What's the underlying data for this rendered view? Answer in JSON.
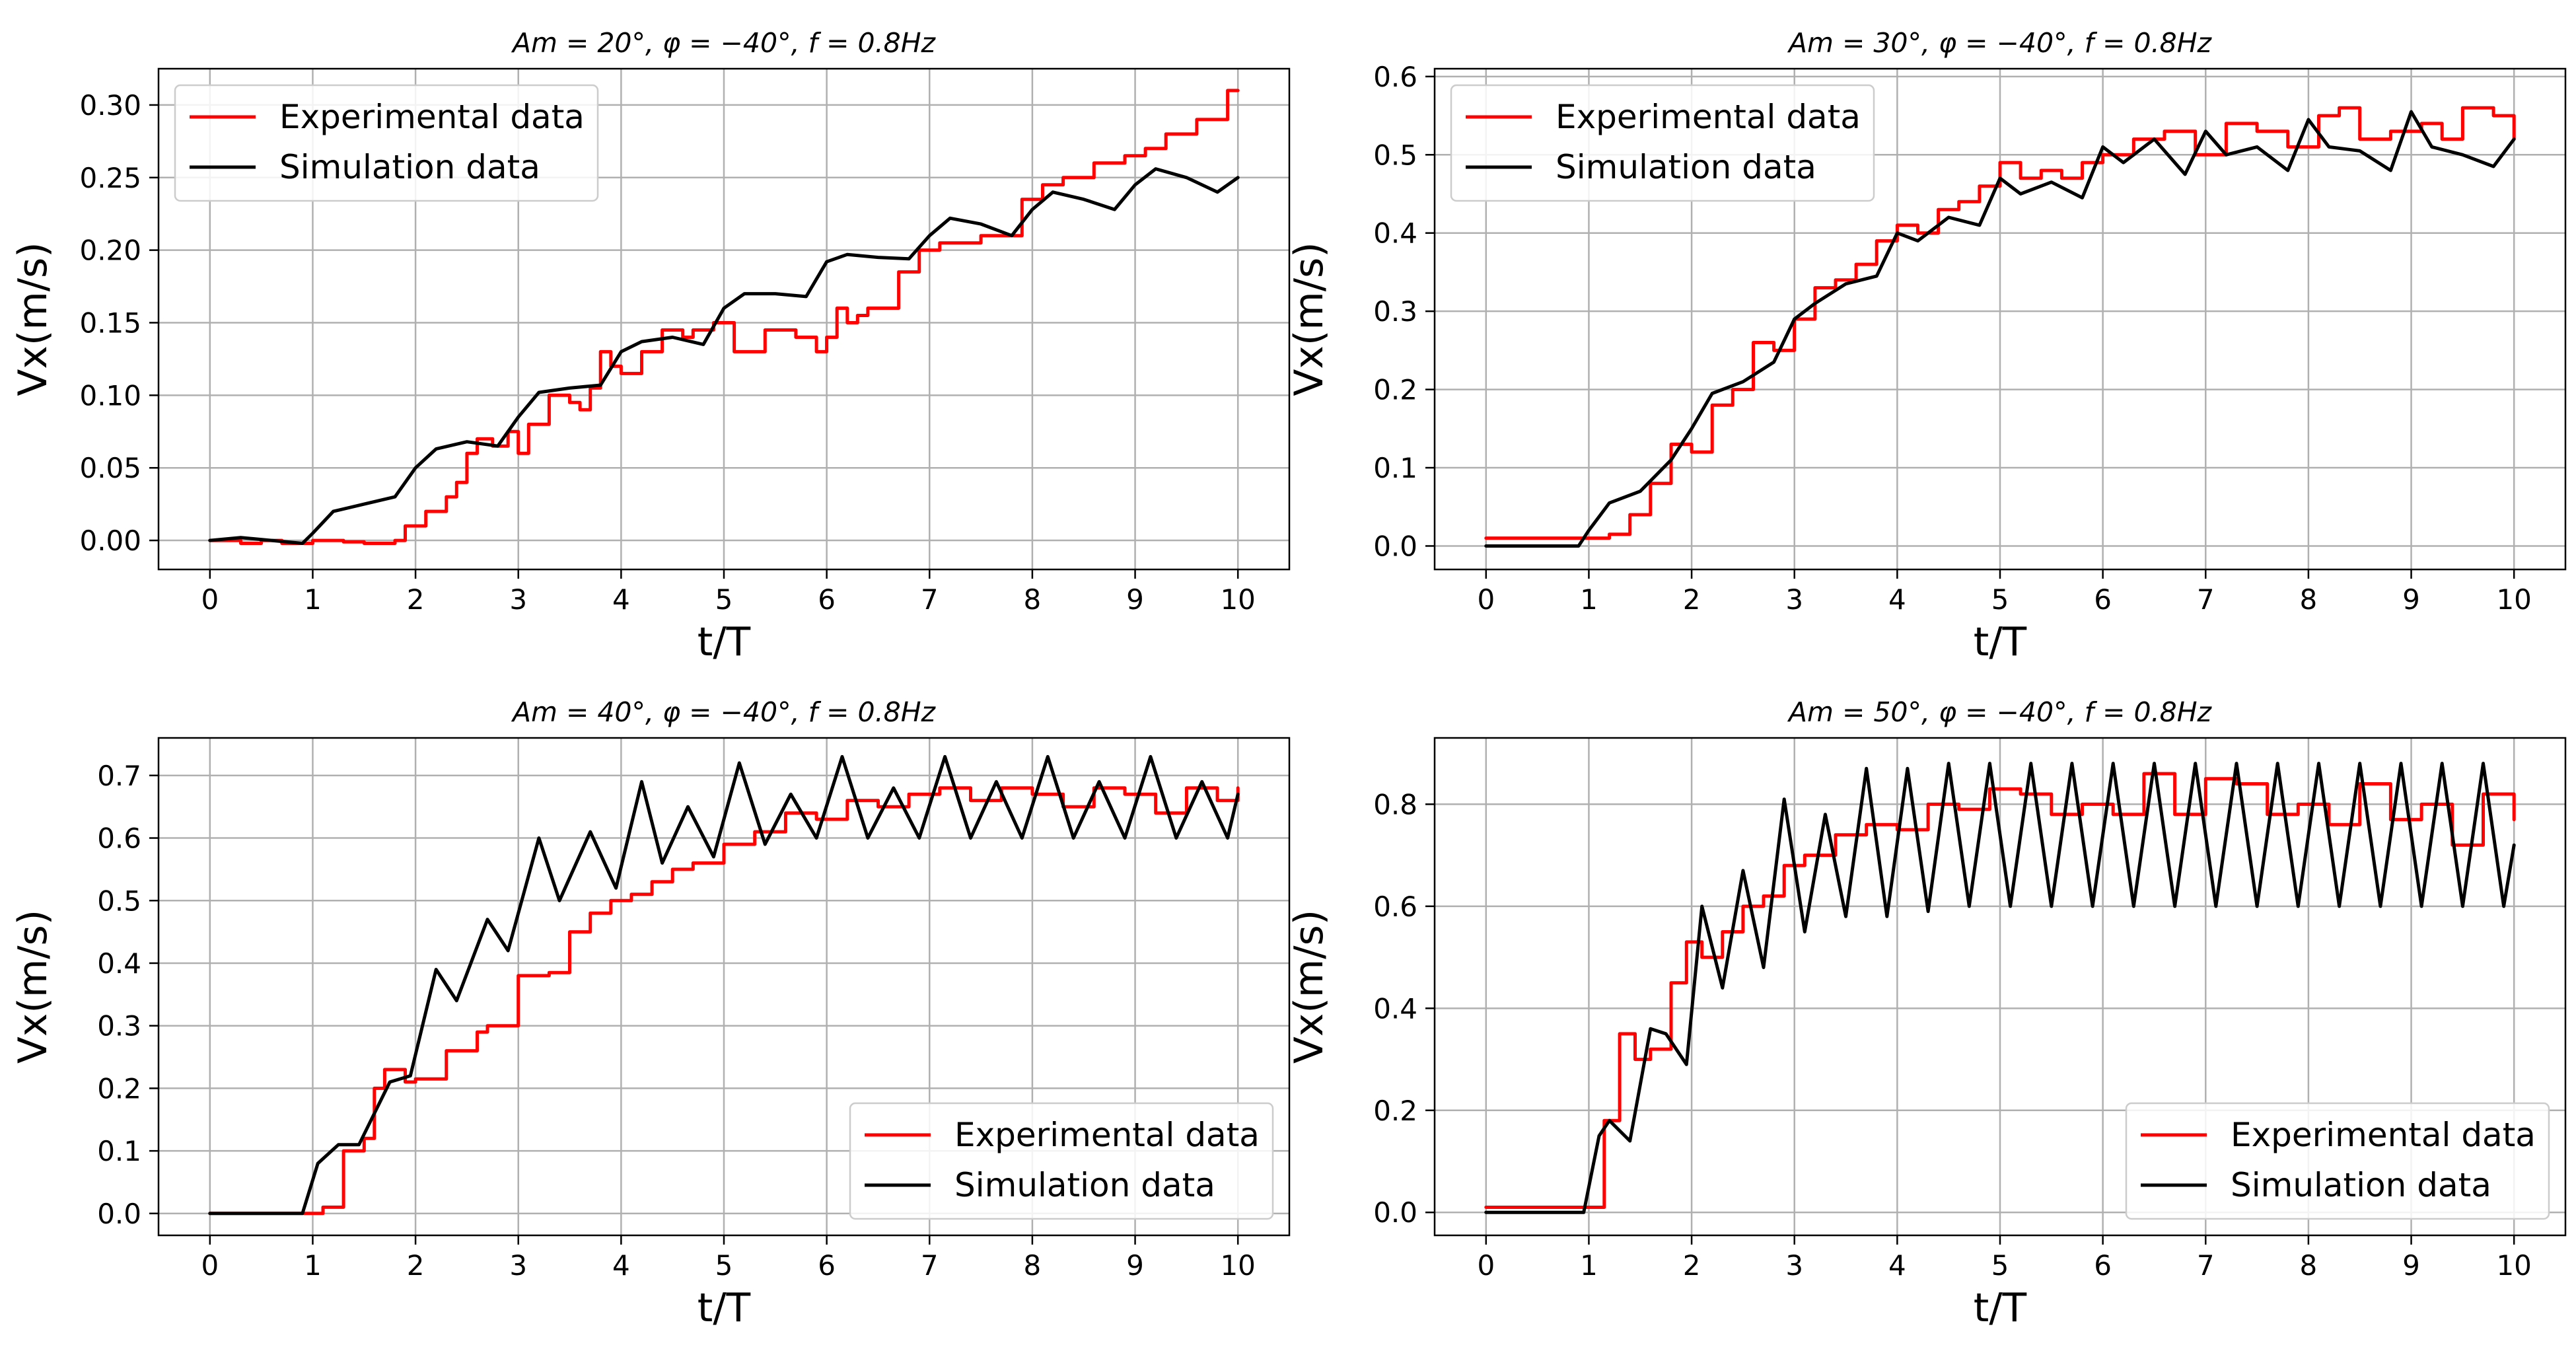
{
  "figure": {
    "description_layout": "2x2 grid of line charts"
  },
  "chart_data": [
    {
      "type": "line",
      "title": "Am = 20°, φ = −40°, f = 0.8Hz",
      "xlabel": "t/T",
      "ylabel": "Vx(m/s)",
      "xlim": [
        -0.5,
        10.5
      ],
      "ylim": [
        -0.02,
        0.325
      ],
      "xticks": [
        0,
        1,
        2,
        3,
        4,
        5,
        6,
        7,
        8,
        9,
        10
      ],
      "yticks": [
        0.0,
        0.05,
        0.1,
        0.15,
        0.2,
        0.25,
        0.3
      ],
      "ytick_labels": [
        "0.00",
        "0.05",
        "0.10",
        "0.15",
        "0.20",
        "0.25",
        "0.30"
      ],
      "grid": true,
      "legend": {
        "placement": "top-left",
        "entries": [
          "Experimental data",
          "Simulation data"
        ]
      },
      "series": [
        {
          "name": "Experimental data",
          "color": "#ff0000",
          "style": "step",
          "x": [
            0,
            0.3,
            0.5,
            0.7,
            1.0,
            1.3,
            1.5,
            1.8,
            1.9,
            2.1,
            2.3,
            2.4,
            2.5,
            2.6,
            2.75,
            2.9,
            3.0,
            3.1,
            3.3,
            3.5,
            3.6,
            3.7,
            3.8,
            3.9,
            4.0,
            4.2,
            4.4,
            4.6,
            4.7,
            4.9,
            5.1,
            5.4,
            5.7,
            5.9,
            6.0,
            6.1,
            6.2,
            6.3,
            6.4,
            6.7,
            6.9,
            7.1,
            7.3,
            7.5,
            7.9,
            8.1,
            8.3,
            8.6,
            8.9,
            9.1,
            9.3,
            9.6,
            9.9,
            10.0
          ],
          "values": [
            0.0,
            -0.002,
            0.0,
            -0.002,
            0.0,
            -0.001,
            -0.002,
            0.0,
            0.01,
            0.02,
            0.03,
            0.04,
            0.06,
            0.07,
            0.065,
            0.075,
            0.06,
            0.08,
            0.1,
            0.095,
            0.09,
            0.105,
            0.13,
            0.12,
            0.115,
            0.13,
            0.145,
            0.14,
            0.145,
            0.15,
            0.13,
            0.145,
            0.14,
            0.13,
            0.14,
            0.16,
            0.15,
            0.155,
            0.16,
            0.185,
            0.2,
            0.205,
            0.205,
            0.21,
            0.235,
            0.245,
            0.25,
            0.26,
            0.265,
            0.27,
            0.28,
            0.29,
            0.31,
            0.31
          ]
        },
        {
          "name": "Simulation data",
          "color": "#000000",
          "style": "line",
          "x": [
            0,
            0.3,
            0.6,
            0.9,
            1.0,
            1.2,
            1.5,
            1.8,
            2.0,
            2.2,
            2.5,
            2.8,
            3.0,
            3.2,
            3.5,
            3.8,
            4.0,
            4.2,
            4.5,
            4.8,
            5.0,
            5.2,
            5.5,
            5.8,
            6.0,
            6.2,
            6.5,
            6.8,
            7.0,
            7.2,
            7.5,
            7.8,
            8.0,
            8.2,
            8.5,
            8.8,
            9.0,
            9.2,
            9.5,
            9.8,
            10.0
          ],
          "values": [
            0.0,
            0.002,
            0.0,
            -0.002,
            0.005,
            0.02,
            0.025,
            0.03,
            0.05,
            0.063,
            0.068,
            0.065,
            0.085,
            0.102,
            0.105,
            0.107,
            0.13,
            0.137,
            0.14,
            0.135,
            0.16,
            0.17,
            0.17,
            0.168,
            0.192,
            0.197,
            0.195,
            0.194,
            0.21,
            0.222,
            0.218,
            0.21,
            0.228,
            0.24,
            0.235,
            0.228,
            0.245,
            0.256,
            0.25,
            0.24,
            0.25
          ]
        }
      ]
    },
    {
      "type": "line",
      "title": "Am = 30°, φ = −40°, f = 0.8Hz",
      "xlabel": "t/T",
      "ylabel": "Vx(m/s)",
      "xlim": [
        -0.5,
        10.5
      ],
      "ylim": [
        -0.03,
        0.61
      ],
      "xticks": [
        0,
        1,
        2,
        3,
        4,
        5,
        6,
        7,
        8,
        9,
        10
      ],
      "yticks": [
        0.0,
        0.1,
        0.2,
        0.3,
        0.4,
        0.5,
        0.6
      ],
      "ytick_labels": [
        "0.0",
        "0.1",
        "0.2",
        "0.3",
        "0.4",
        "0.5",
        "0.6"
      ],
      "grid": true,
      "legend": {
        "placement": "top-left",
        "entries": [
          "Experimental data",
          "Simulation data"
        ]
      },
      "series": [
        {
          "name": "Experimental data",
          "color": "#ff0000",
          "style": "step",
          "x": [
            0,
            0.5,
            1.0,
            1.2,
            1.4,
            1.6,
            1.8,
            2.0,
            2.2,
            2.4,
            2.6,
            2.8,
            3.0,
            3.2,
            3.4,
            3.6,
            3.8,
            4.0,
            4.2,
            4.4,
            4.6,
            4.8,
            5.0,
            5.2,
            5.4,
            5.6,
            5.8,
            6.0,
            6.3,
            6.6,
            6.9,
            7.2,
            7.5,
            7.8,
            8.1,
            8.3,
            8.5,
            8.8,
            9.1,
            9.3,
            9.5,
            9.8,
            10.0
          ],
          "values": [
            0.01,
            0.01,
            0.01,
            0.015,
            0.04,
            0.08,
            0.13,
            0.12,
            0.18,
            0.2,
            0.26,
            0.25,
            0.29,
            0.33,
            0.34,
            0.36,
            0.39,
            0.41,
            0.4,
            0.43,
            0.44,
            0.46,
            0.49,
            0.47,
            0.48,
            0.47,
            0.49,
            0.5,
            0.52,
            0.53,
            0.5,
            0.54,
            0.53,
            0.51,
            0.55,
            0.56,
            0.52,
            0.53,
            0.54,
            0.52,
            0.56,
            0.55,
            0.52
          ]
        },
        {
          "name": "Simulation data",
          "color": "#000000",
          "style": "line",
          "x": [
            0,
            0.5,
            0.9,
            1.0,
            1.2,
            1.5,
            1.8,
            2.0,
            2.2,
            2.5,
            2.8,
            3.0,
            3.2,
            3.5,
            3.8,
            4.0,
            4.2,
            4.5,
            4.8,
            5.0,
            5.2,
            5.5,
            5.8,
            6.0,
            6.2,
            6.5,
            6.8,
            7.0,
            7.2,
            7.5,
            7.8,
            8.0,
            8.2,
            8.5,
            8.8,
            9.0,
            9.2,
            9.5,
            9.8,
            10.0
          ],
          "values": [
            0.0,
            0.0,
            0.0,
            0.02,
            0.055,
            0.07,
            0.11,
            0.15,
            0.195,
            0.21,
            0.235,
            0.29,
            0.31,
            0.335,
            0.345,
            0.4,
            0.39,
            0.42,
            0.41,
            0.47,
            0.45,
            0.465,
            0.445,
            0.51,
            0.49,
            0.52,
            0.475,
            0.53,
            0.5,
            0.51,
            0.48,
            0.545,
            0.51,
            0.505,
            0.48,
            0.555,
            0.51,
            0.5,
            0.485,
            0.52
          ]
        }
      ]
    },
    {
      "type": "line",
      "title": "Am = 40°, φ = −40°, f = 0.8Hz",
      "xlabel": "t/T",
      "ylabel": "Vx(m/s)",
      "xlim": [
        -0.5,
        10.5
      ],
      "ylim": [
        -0.035,
        0.76
      ],
      "xticks": [
        0,
        1,
        2,
        3,
        4,
        5,
        6,
        7,
        8,
        9,
        10
      ],
      "yticks": [
        0.0,
        0.1,
        0.2,
        0.3,
        0.4,
        0.5,
        0.6,
        0.7
      ],
      "ytick_labels": [
        "0.0",
        "0.1",
        "0.2",
        "0.3",
        "0.4",
        "0.5",
        "0.6",
        "0.7"
      ],
      "grid": true,
      "legend": {
        "placement": "bottom-right",
        "entries": [
          "Experimental data",
          "Simulation data"
        ]
      },
      "series": [
        {
          "name": "Experimental data",
          "color": "#ff0000",
          "style": "step",
          "x": [
            0,
            0.5,
            1.0,
            1.1,
            1.3,
            1.5,
            1.6,
            1.7,
            1.9,
            2.0,
            2.3,
            2.6,
            2.7,
            3.0,
            3.3,
            3.5,
            3.7,
            3.9,
            4.1,
            4.3,
            4.5,
            4.7,
            5.0,
            5.3,
            5.6,
            5.9,
            6.2,
            6.5,
            6.8,
            7.1,
            7.4,
            7.7,
            8.0,
            8.3,
            8.6,
            8.9,
            9.2,
            9.5,
            9.8,
            10.0
          ],
          "values": [
            0.0,
            0.0,
            0.0,
            0.01,
            0.1,
            0.12,
            0.2,
            0.23,
            0.21,
            0.215,
            0.26,
            0.29,
            0.3,
            0.38,
            0.385,
            0.45,
            0.48,
            0.5,
            0.51,
            0.53,
            0.55,
            0.56,
            0.59,
            0.61,
            0.64,
            0.63,
            0.66,
            0.65,
            0.67,
            0.68,
            0.66,
            0.68,
            0.67,
            0.65,
            0.68,
            0.67,
            0.64,
            0.68,
            0.66,
            0.68
          ]
        },
        {
          "name": "Simulation data",
          "color": "#000000",
          "style": "line",
          "x": [
            0,
            0.6,
            0.9,
            1.05,
            1.25,
            1.45,
            1.6,
            1.75,
            1.95,
            2.2,
            2.4,
            2.7,
            2.9,
            3.2,
            3.4,
            3.7,
            3.95,
            4.2,
            4.4,
            4.65,
            4.9,
            5.15,
            5.4,
            5.65,
            5.9,
            6.15,
            6.4,
            6.65,
            6.9,
            7.15,
            7.4,
            7.65,
            7.9,
            8.15,
            8.4,
            8.65,
            8.9,
            9.15,
            9.4,
            9.65,
            9.9,
            10.0
          ],
          "values": [
            0.0,
            0.0,
            0.0,
            0.08,
            0.11,
            0.11,
            0.16,
            0.21,
            0.22,
            0.39,
            0.34,
            0.47,
            0.42,
            0.6,
            0.5,
            0.61,
            0.52,
            0.69,
            0.56,
            0.65,
            0.57,
            0.72,
            0.59,
            0.67,
            0.6,
            0.73,
            0.6,
            0.68,
            0.6,
            0.73,
            0.6,
            0.69,
            0.6,
            0.73,
            0.6,
            0.69,
            0.6,
            0.73,
            0.6,
            0.69,
            0.6,
            0.67
          ]
        }
      ]
    },
    {
      "type": "line",
      "title": "Am = 50°, φ = −40°, f = 0.8Hz",
      "xlabel": "t/T",
      "ylabel": "Vx(m/s)",
      "xlim": [
        -0.5,
        10.5
      ],
      "ylim": [
        -0.045,
        0.93
      ],
      "xticks": [
        0,
        1,
        2,
        3,
        4,
        5,
        6,
        7,
        8,
        9,
        10
      ],
      "yticks": [
        0.0,
        0.2,
        0.4,
        0.6,
        0.8
      ],
      "ytick_labels": [
        "0.0",
        "0.2",
        "0.4",
        "0.6",
        "0.8"
      ],
      "grid": true,
      "legend": {
        "placement": "bottom-right",
        "entries": [
          "Experimental data",
          "Simulation data"
        ]
      },
      "series": [
        {
          "name": "Experimental data",
          "color": "#ff0000",
          "style": "step",
          "x": [
            0,
            0.5,
            1.0,
            1.15,
            1.3,
            1.45,
            1.6,
            1.8,
            1.95,
            2.1,
            2.3,
            2.5,
            2.7,
            2.9,
            3.1,
            3.4,
            3.7,
            4.0,
            4.3,
            4.6,
            4.9,
            5.2,
            5.5,
            5.8,
            6.1,
            6.4,
            6.7,
            7.0,
            7.3,
            7.6,
            7.9,
            8.2,
            8.5,
            8.8,
            9.1,
            9.4,
            9.7,
            10.0
          ],
          "values": [
            0.01,
            0.01,
            0.01,
            0.18,
            0.35,
            0.3,
            0.32,
            0.45,
            0.53,
            0.5,
            0.55,
            0.6,
            0.62,
            0.68,
            0.7,
            0.74,
            0.76,
            0.75,
            0.8,
            0.79,
            0.83,
            0.82,
            0.78,
            0.8,
            0.78,
            0.86,
            0.78,
            0.85,
            0.84,
            0.78,
            0.8,
            0.76,
            0.84,
            0.77,
            0.8,
            0.72,
            0.82,
            0.77
          ]
        },
        {
          "name": "Simulation data",
          "color": "#000000",
          "style": "line",
          "x": [
            0,
            0.6,
            0.95,
            1.1,
            1.2,
            1.4,
            1.6,
            1.75,
            1.95,
            2.1,
            2.3,
            2.5,
            2.7,
            2.9,
            3.1,
            3.3,
            3.5,
            3.7,
            3.9,
            4.1,
            4.3,
            4.5,
            4.7,
            4.9,
            5.1,
            5.3,
            5.5,
            5.7,
            5.9,
            6.1,
            6.3,
            6.5,
            6.7,
            6.9,
            7.1,
            7.3,
            7.5,
            7.7,
            7.9,
            8.1,
            8.3,
            8.5,
            8.7,
            8.9,
            9.1,
            9.3,
            9.5,
            9.7,
            9.9,
            10.0
          ],
          "values": [
            0.0,
            0.0,
            0.0,
            0.15,
            0.18,
            0.14,
            0.36,
            0.35,
            0.29,
            0.6,
            0.44,
            0.67,
            0.48,
            0.81,
            0.55,
            0.78,
            0.58,
            0.87,
            0.58,
            0.87,
            0.59,
            0.88,
            0.6,
            0.88,
            0.6,
            0.88,
            0.6,
            0.88,
            0.6,
            0.88,
            0.6,
            0.88,
            0.6,
            0.88,
            0.6,
            0.88,
            0.6,
            0.88,
            0.6,
            0.88,
            0.6,
            0.88,
            0.6,
            0.88,
            0.6,
            0.88,
            0.6,
            0.88,
            0.6,
            0.72
          ]
        }
      ]
    }
  ]
}
